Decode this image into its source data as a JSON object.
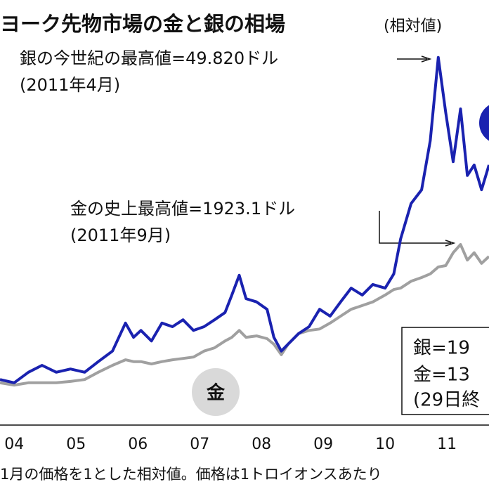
{
  "chart_data": {
    "type": "line",
    "title": "ヨーク先物市場の金と銀の相場",
    "subtitle": "(相対値)",
    "annotations": [
      "銀の今世紀の最高値=49.820ドル",
      "(2011年4月)",
      "金の史上最高値=1923.1ドル",
      "(2011年9月)"
    ],
    "box_lines": [
      "銀=19",
      "金=13",
      "(29日終"
    ],
    "note": "1月の価格を1とした相対値。価格は1トロイオンスあたり",
    "x": [
      2004.27,
      2004.5,
      2004.73,
      2004.95,
      2005.18,
      2005.41,
      2005.64,
      2005.86,
      2006.09,
      2006.3,
      2006.43,
      2006.55,
      2006.72,
      2006.89,
      2007.06,
      2007.23,
      2007.4,
      2007.57,
      2007.74,
      2007.91,
      2008.02,
      2008.14,
      2008.25,
      2008.42,
      2008.59,
      2008.7,
      2008.82,
      2008.93,
      2009.1,
      2009.27,
      2009.44,
      2009.61,
      2009.78,
      2009.95,
      2010.13,
      2010.3,
      2010.5,
      2010.64,
      2010.75,
      2010.92,
      2011.09,
      2011.23,
      2011.36,
      2011.48,
      2011.6,
      2011.72,
      2011.83,
      2011.94,
      2012.06,
      2012.18
    ],
    "series": [
      {
        "color": "#1a22b0",
        "values": [
          0.99,
          0.92,
          1.15,
          1.3,
          1.15,
          1.22,
          1.15,
          1.38,
          1.61,
          2.22,
          1.91,
          2.06,
          1.83,
          2.22,
          2.14,
          2.29,
          2.06,
          2.14,
          2.29,
          2.45,
          2.83,
          3.26,
          2.75,
          2.68,
          2.52,
          1.91,
          1.61,
          1.76,
          1.99,
          2.14,
          2.52,
          2.37,
          2.68,
          2.98,
          2.83,
          3.06,
          2.98,
          3.29,
          4.05,
          4.82,
          5.12,
          6.19,
          8.0,
          6.8,
          5.73,
          6.88,
          5.43,
          5.66,
          5.12,
          5.66
        ]
      },
      {
        "name": "金",
        "color": "#a0a0a0",
        "values": [
          0.92,
          0.87,
          0.92,
          0.92,
          0.92,
          0.95,
          0.99,
          1.15,
          1.3,
          1.42,
          1.38,
          1.38,
          1.33,
          1.38,
          1.42,
          1.45,
          1.48,
          1.61,
          1.68,
          1.83,
          1.91,
          2.06,
          1.91,
          1.94,
          1.88,
          1.76,
          1.53,
          1.76,
          1.99,
          2.06,
          2.09,
          2.22,
          2.37,
          2.52,
          2.6,
          2.68,
          2.83,
          2.95,
          2.98,
          3.13,
          3.21,
          3.29,
          3.44,
          3.47,
          3.75,
          3.93,
          3.59,
          3.75,
          3.52,
          3.67
        ]
      }
    ],
    "xlim": [
      2004.27,
      2012.18
    ],
    "ylim": [
      0,
      9.25
    ],
    "xticks": [
      {
        "value": 2004.5,
        "label": "04"
      },
      {
        "value": 2005.5,
        "label": "05"
      },
      {
        "value": 2006.5,
        "label": "06"
      },
      {
        "value": 2007.5,
        "label": "07"
      },
      {
        "value": 2008.5,
        "label": "08"
      },
      {
        "value": 2009.5,
        "label": "09"
      },
      {
        "value": 2010.5,
        "label": "10"
      },
      {
        "value": 2011.5,
        "label": "11"
      }
    ]
  }
}
